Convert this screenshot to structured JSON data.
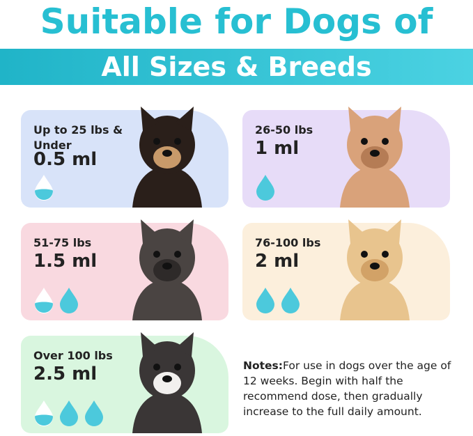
{
  "header": {
    "title": "Suitable for Dogs of",
    "banner": "All Sizes & Breeds"
  },
  "colors": {
    "accent": "#27bfd2",
    "drop": "#4cc9dc"
  },
  "cards": [
    {
      "weight": "Up to 25 lbs & Under",
      "dose": "0.5 ml",
      "drops": [
        0.5
      ],
      "color": "#d8e3f9",
      "dog": "chihuahua"
    },
    {
      "weight": "26-50 lbs",
      "dose": "1 ml",
      "drops": [
        1
      ],
      "color": "#e7dcf8",
      "dog": "poodle"
    },
    {
      "weight": "51-75 lbs",
      "dose": "1.5 ml",
      "drops": [
        0.5,
        1
      ],
      "color": "#f9d9e0",
      "dog": "french-bulldog"
    },
    {
      "weight": "76-100 lbs",
      "dose": "2 ml",
      "drops": [
        1,
        1
      ],
      "color": "#fcefdc",
      "dog": "golden-retriever"
    },
    {
      "weight": "Over 100 lbs",
      "dose": "2.5 ml",
      "drops": [
        0.5,
        1,
        1
      ],
      "color": "#d9f6df",
      "dog": "malamute"
    }
  ],
  "notes": {
    "label": "Notes:",
    "text": "For use in dogs over the age of 12 weeks. Begin with half  the recommend dose, then gradually increase to the full daily amount."
  }
}
